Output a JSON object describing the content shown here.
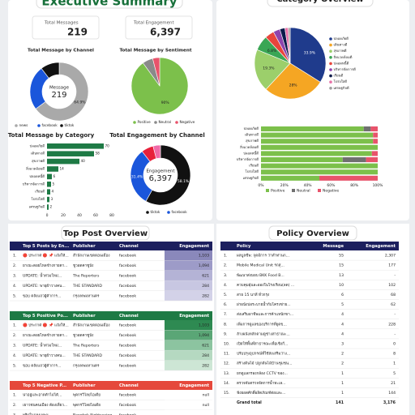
{
  "header": {
    "title": "Executive Summary"
  },
  "kpis": [
    {
      "label": "Total Messages",
      "value": "219"
    },
    {
      "label": "Total Engagement",
      "value": "6,397"
    }
  ],
  "sections": {
    "top_post": "Top Post Overview",
    "policy": "Policy Overview"
  },
  "chart_data": [
    {
      "type": "donut",
      "title": "Total Message by Channel",
      "center_label": "Message",
      "center_value": "219",
      "categories": [
        "news",
        "facebook",
        "tiktok"
      ],
      "values": [
        64.9,
        24.7,
        10.4
      ],
      "value_labels": [
        "64.9%",
        null,
        null
      ],
      "colors": [
        "#a9a9a9",
        "#1a56db",
        "#111111"
      ]
    },
    {
      "type": "pie",
      "title": "Total Message by Sentiment",
      "categories": [
        "Positive",
        "Neutral",
        "Negative"
      ],
      "values": [
        90,
        6,
        4
      ],
      "value_labels": [
        "90%",
        null,
        null
      ],
      "colors": [
        "#7cc04b",
        "#8a8a8a",
        "#e8536b"
      ]
    },
    {
      "type": "hbar",
      "title": "Total Message by Category",
      "categories": [
        "ปลอดภัยดี",
        "เดินทางดี",
        "สุขภาพดี",
        "สิ่งแวดล้อมดี",
        "ปลอดหนี้ดี",
        "บริหารจัดการดี",
        "เรียนดี",
        "โปร่งใสดี",
        "เศรษฐกิจดี"
      ],
      "values": [
        70,
        58,
        40,
        14,
        6,
        5,
        4,
        3,
        2
      ],
      "color": "#1e7a45",
      "xlim": [
        0,
        80
      ],
      "xticks": [
        0,
        20,
        40,
        60,
        80
      ]
    },
    {
      "type": "donut",
      "title": "Total Engagement by Channel",
      "center_label": "Engagement",
      "center_value": "6,397",
      "categories": [
        "tiktok",
        "facebook",
        null,
        null
      ],
      "values": [
        58.1,
        31.4,
        6.5,
        4.0
      ],
      "value_labels": [
        "58.1%",
        "31.4%",
        null,
        null
      ],
      "colors": [
        "#111111",
        "#1a56db",
        "#e8203b",
        "#f06aa8"
      ]
    },
    {
      "type": "pie",
      "title": "Category Overview",
      "categories": [
        "ปลอดภัยดี",
        "เดินทางดี",
        "สุขภาพดี",
        "สิ่งแวดล้อมดี",
        "ปลอดหนี้ดี",
        "บริหารจัดการดี",
        "เรียนดี",
        "โปร่งใสดี",
        "เศรษฐกิจดี"
      ],
      "values": [
        33.9,
        28,
        19.3,
        6.8,
        4.2,
        3.1,
        2.3,
        1.5,
        0.9
      ],
      "value_labels": [
        "33.9%",
        "28%",
        "19.3%",
        "6.8%",
        null,
        null,
        null,
        null,
        null
      ],
      "colors": [
        "#1f3b8c",
        "#f5a623",
        "#9ccf6b",
        "#3aa655",
        "#e8453c",
        "#8e44ad",
        "#0b1a4a",
        "#e872a8",
        "#9e9e9e"
      ]
    },
    {
      "type": "stacked_hbar",
      "categories": [
        "ปลอดภัยดี",
        "เดินทางดี",
        "สุขภาพดี",
        "สิ่งแวดล้อมดี",
        "ปลอดหนี้ดี",
        "บริหารจัดการดี",
        "เรียนดี",
        "โปร่งใสดี",
        "เศรษฐกิจดี"
      ],
      "series": [
        {
          "name": "Positive",
          "color": "#7cc04b",
          "values": [
            88,
            96,
            96,
            100,
            95,
            70,
            100,
            100,
            50
          ]
        },
        {
          "name": "Neutral",
          "color": "#707070",
          "values": [
            6,
            0,
            0,
            0,
            0,
            20,
            0,
            0,
            0
          ]
        },
        {
          "name": "Negative",
          "color": "#e8536b",
          "values": [
            6,
            4,
            4,
            0,
            5,
            10,
            0,
            0,
            50
          ]
        }
      ],
      "xlim": [
        0,
        100
      ],
      "xticks": [
        {
          "value": 0,
          "label": "0%"
        },
        {
          "value": 20,
          "label": "20%"
        },
        {
          "value": 40,
          "label": "40%"
        },
        {
          "value": 60,
          "label": "60%"
        },
        {
          "value": 80,
          "label": "80%"
        },
        {
          "value": 100,
          "label": "100%"
        }
      ]
    }
  ],
  "post_tables": [
    {
      "columns": [
        "Top 5 Posts by En...",
        "Publisher",
        "Channel",
        "Engagement"
      ],
      "header_color": "#1c1f5e",
      "cell_colors": [
        "#8a88bb",
        "#9d9bc8",
        "#b4b3d6",
        "#c8c7e2",
        "#d3d2e8"
      ],
      "rows": [
        [
          "1.",
          "🔴 ประกาศ 🔴 📌 แจ้งให้...",
          "สำนักงานเขตดอนเมือง",
          "facebook",
          "1,103"
        ],
        [
          "2.",
          "ยางมะตอยไหลข้างกายตา...",
          "ชูวอดคาชูบัง",
          "facebook",
          "1,094"
        ],
        [
          "3.",
          "UPDATE: น้ำท่วมใหม่...",
          "The Reporters",
          "facebook",
          "621"
        ],
        [
          "4.",
          "UPDATE: พายุฝ้าวางคน...",
          "THE STANDARD",
          "facebook",
          "284"
        ],
        [
          "5.",
          "ขอบ คลังแถวผู้ค้าการ...",
          "กรุงเทพมหานคร",
          "facebook",
          "282"
        ]
      ]
    },
    {
      "columns": [
        "Top 5 Positive Po...",
        "Publisher",
        "Channel",
        "Engagement"
      ],
      "header_color": "#1e7a45",
      "cell_colors": [
        "#2e8a52",
        "#5aa676",
        "#8cc4a0",
        "#b5d9c1",
        "#cde6d5"
      ],
      "rows": [
        [
          "1.",
          "🔴 ประกาศ 🔴 📌 แจ้งให้...",
          "สำนักงานเขตดอนเมือง",
          "facebook",
          "1,103"
        ],
        [
          "2.",
          "ยางมะตอยไหลข้างกายตา...",
          "ชูวอดคาชูบัง",
          "facebook",
          "1,094"
        ],
        [
          "3.",
          "UPDATE: น้ำท่วมใหม่...",
          "The Reporters",
          "facebook",
          "621"
        ],
        [
          "4.",
          "UPDATE: พายุฝ้าวางคน...",
          "THE STANDARD",
          "facebook",
          "284"
        ],
        [
          "5.",
          "ขอบ คลังแถวผู้ค้าการ...",
          "กรุงเทพมหานคร",
          "facebook",
          "282"
        ]
      ]
    },
    {
      "columns": [
        "Top 5 Negative P...",
        "Publisher",
        "Channel",
        "Engagement"
      ],
      "header_color": "#e5483b",
      "cell_colors": [
        "#ffffff",
        "#ffffff",
        "#ffffff"
      ],
      "rows": [
        [
          "1.",
          "น่าอยู่และอาดค้าไม่ได้...",
          "พุดกรวิไลยไอเดีย",
          "facebook",
          "null"
        ],
        [
          "2.",
          "เยาวชนคนเมือง ต้องเที่ยว...",
          "พุดกรวิไลยไอเดีย",
          "facebook",
          "null"
        ],
        [
          "3.",
          "ทริปในกรุงเทพฯ ...",
          "Bangkok Sightseeing",
          "facebook",
          ""
        ]
      ]
    }
  ],
  "policy_table": {
    "columns": [
      "Policy",
      "Message",
      "Engagement"
    ],
    "rows": [
      [
        "1.",
        "ผลบูลชีพ: จุดมีการ ว่าทำท่านก...",
        "55",
        "2,307"
      ],
      [
        "2.",
        "Mobile Medical Unit รถสุ...",
        "15",
        "177"
      ],
      [
        "3.",
        "พัฒนาส่งมอบ BKK Food B...",
        "13",
        "-"
      ],
      [
        "4.",
        "ควบคุมฝุ่นละอองในโรงเรียน(ลด) ...",
        "10",
        "102"
      ],
      [
        "5.",
        "สาย 15 นาที ทั่วกรุง",
        "6",
        "68"
      ],
      [
        "6.",
        "ฝาผนังบ่อระบายน้ำกับโครงข่าย...",
        "5",
        "62"
      ],
      [
        "7.",
        "ส่งเสริมอาชีพและการค้าแหนักขา...",
        "4",
        "-"
      ],
      [
        "8.",
        "เพิ่มการดูแลของบริการที่ยุตข...",
        "4",
        "228"
      ],
      [
        "9.",
        "ล้างผนังหลักตามดูช่างสาธาณะ...",
        "4",
        "-"
      ],
      [
        "10.",
        "เปิดให้พื้นที่สาธารณะเพื่อเชิงกี...",
        "3",
        "0"
      ],
      [
        "11.",
        "ปรับปรุงอุปกรณ์ที่ใช้ส่งเสริมว่าง...",
        "2",
        "8"
      ],
      [
        "12.",
        "สร้างต้นไม้ ปลูกต้นไม้บ้านชุมชน...",
        "2",
        "1"
      ],
      [
        "13.",
        "ยกดูแลกรองกล้อง CCTV ของ...",
        "1",
        "5"
      ],
      [
        "14.",
        "ตรวจจับตรวจจัดการน้ำทะเล...",
        "1",
        "21"
      ],
      [
        "15.",
        "ฟังยอดศักดิ์ผลิตภัณฑ์ต่อและ...",
        "1",
        "144"
      ]
    ],
    "total": [
      "Grand total",
      "141",
      "3,176"
    ]
  }
}
